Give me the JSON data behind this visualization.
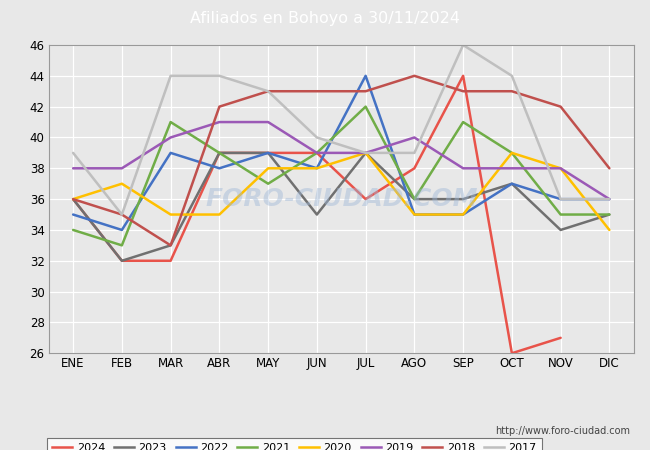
{
  "title": "Afiliados en Bohoyo a 30/11/2024",
  "title_bg_color": "#4472c4",
  "title_text_color": "white",
  "months": [
    "ENE",
    "FEB",
    "MAR",
    "ABR",
    "MAY",
    "JUN",
    "JUL",
    "AGO",
    "SEP",
    "OCT",
    "NOV",
    "DIC"
  ],
  "ylim": [
    26,
    46
  ],
  "yticks": [
    26,
    28,
    30,
    32,
    34,
    36,
    38,
    40,
    42,
    44,
    46
  ],
  "series": {
    "2024": {
      "color": "#e8534a",
      "data": [
        36,
        32,
        32,
        39,
        39,
        39,
        36,
        38,
        44,
        26,
        27,
        null
      ]
    },
    "2023": {
      "color": "#707070",
      "data": [
        36,
        32,
        33,
        39,
        39,
        35,
        39,
        36,
        36,
        37,
        34,
        35
      ]
    },
    "2022": {
      "color": "#4472c4",
      "data": [
        35,
        34,
        39,
        38,
        39,
        38,
        44,
        35,
        35,
        37,
        36,
        36
      ]
    },
    "2021": {
      "color": "#70ad47",
      "data": [
        34,
        33,
        41,
        39,
        37,
        39,
        42,
        36,
        41,
        39,
        35,
        35
      ]
    },
    "2020": {
      "color": "#ffc000",
      "data": [
        36,
        37,
        35,
        35,
        38,
        38,
        39,
        35,
        35,
        39,
        38,
        34
      ]
    },
    "2019": {
      "color": "#9b59b6",
      "data": [
        38,
        38,
        40,
        41,
        41,
        39,
        39,
        40,
        38,
        38,
        38,
        36
      ]
    },
    "2018": {
      "color": "#c0504d",
      "data": [
        36,
        35,
        33,
        42,
        43,
        43,
        43,
        44,
        43,
        43,
        42,
        38
      ]
    },
    "2017": {
      "color": "#bfbfbf",
      "data": [
        39,
        35,
        44,
        44,
        43,
        40,
        39,
        39,
        46,
        44,
        36,
        36
      ]
    }
  },
  "watermark": "FORO-CIUDAD.COM",
  "footer_url": "http://www.foro-ciudad.com",
  "bg_color": "#e8e8e8",
  "plot_bg_color": "#e8e8e8",
  "grid_color": "white"
}
